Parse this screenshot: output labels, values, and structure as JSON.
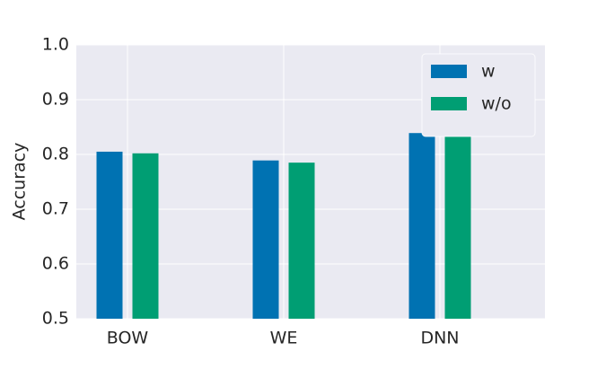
{
  "chart_data": {
    "type": "bar",
    "y_label": "Accuracy",
    "categories": [
      "BOW",
      "WE",
      "DNN"
    ],
    "series": [
      {
        "name": "w",
        "color": "#0072b2",
        "values": [
          0.805,
          0.789,
          0.839
        ]
      },
      {
        "name": "w/o",
        "color": "#009e73",
        "values": [
          0.802,
          0.785,
          0.838
        ]
      }
    ],
    "ylim": [
      0.5,
      1.0
    ],
    "yticks": [
      0.5,
      0.6,
      0.7,
      0.8,
      0.9,
      {
        "value": 1.0,
        "label": "1.0"
      }
    ],
    "grid": true,
    "legend": "upper right"
  }
}
